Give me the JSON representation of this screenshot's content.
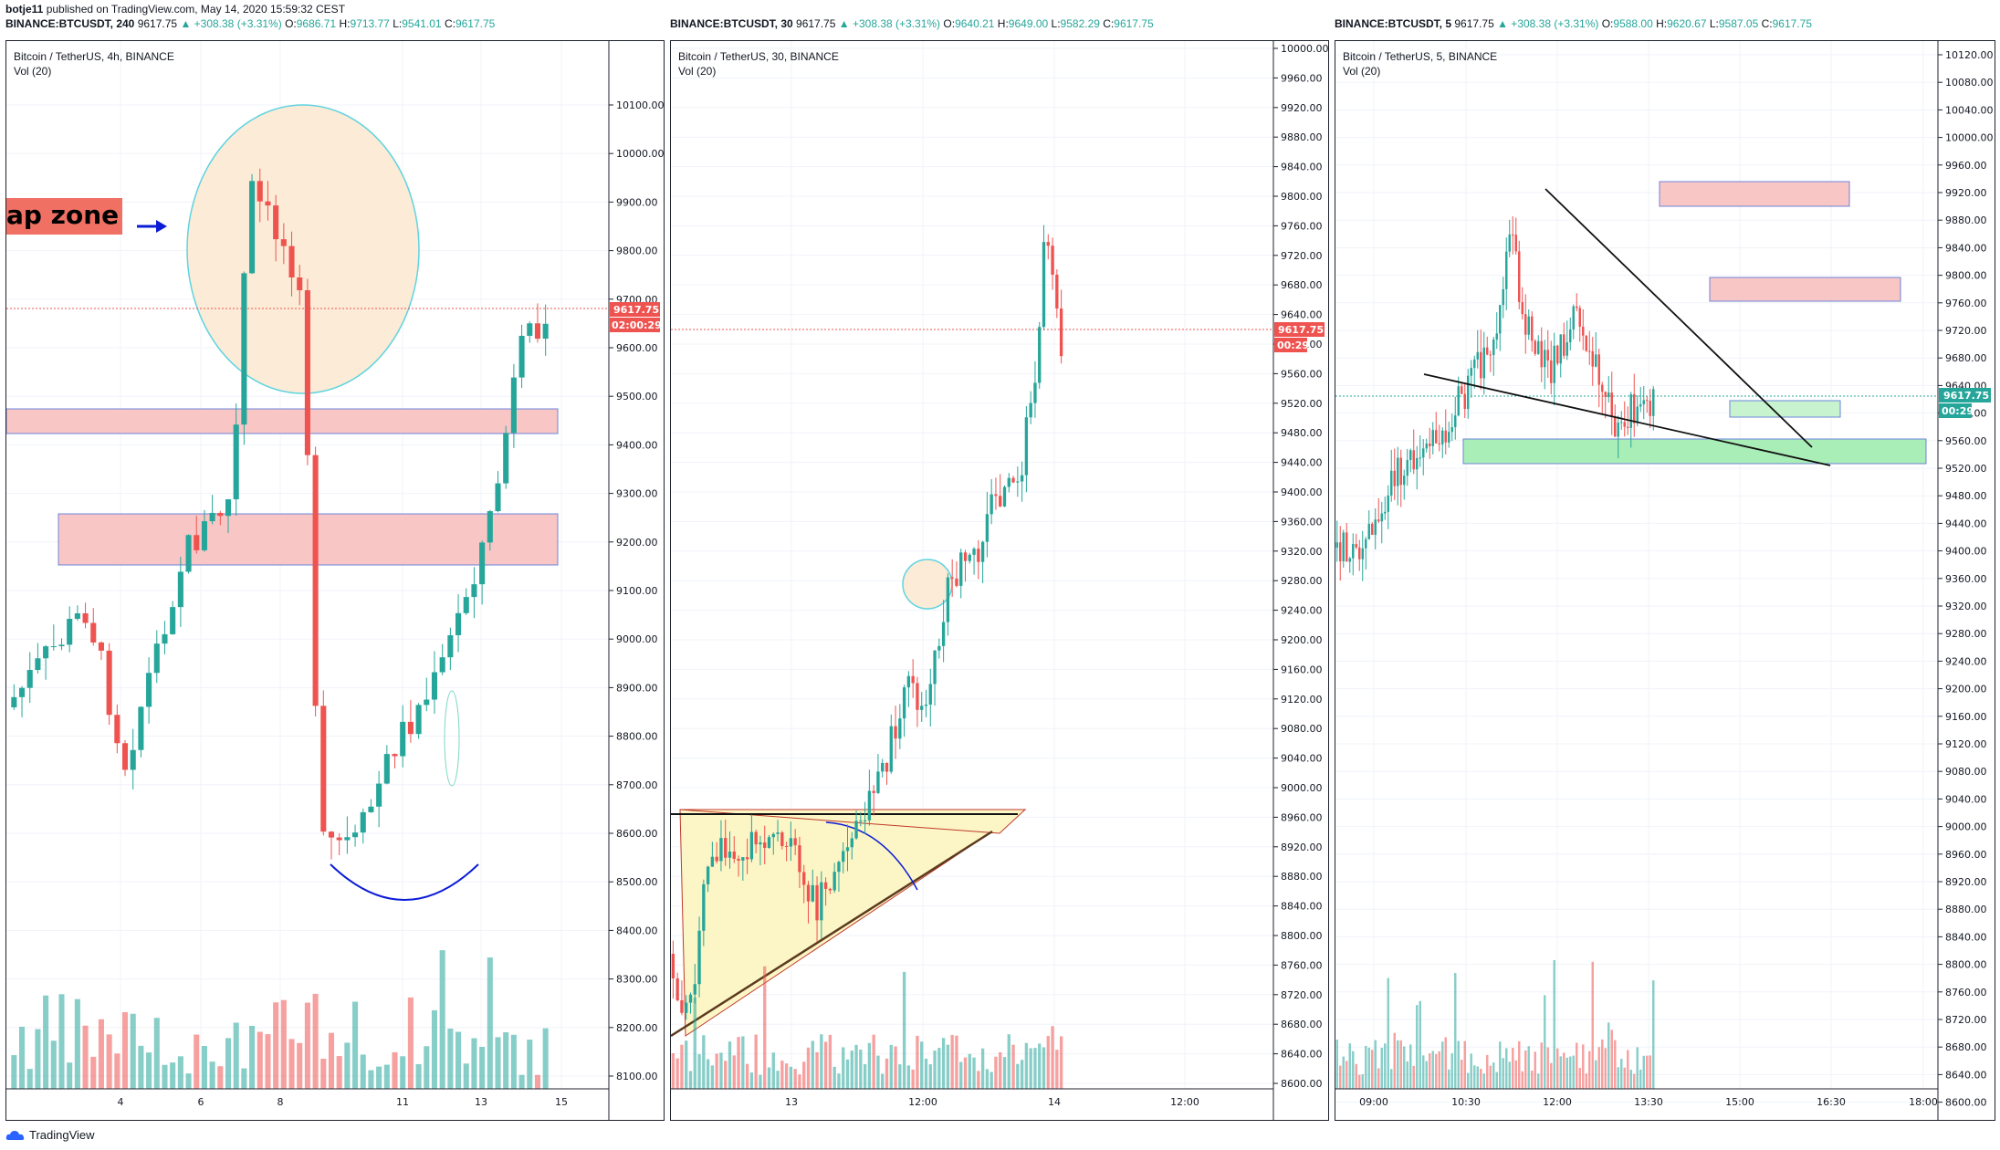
{
  "publisher": {
    "user": "botje11",
    "text": "published on TradingView.com, May 14, 2020 15:59:32 CEST"
  },
  "brand": "TradingView",
  "colors": {
    "up": "#26a69a",
    "down": "#ef5350",
    "zone_red": "#f7b3b3",
    "zone_green": "#a9eeb7"
  },
  "panels": [
    {
      "header": {
        "symbol": "BINANCE:BTCUSDT, 240",
        "last": "9617.75",
        "change": "▲ +308.38 (+3.31%)",
        "o_label": "O:",
        "o": "9686.71",
        "h_label": "H:",
        "h": "9713.77",
        "l_label": "L:",
        "l": "9541.01",
        "c_label": "C:",
        "c": "9617.75"
      },
      "title": "Bitcoin / TetherUS, 4h, BINANCE",
      "vol": "Vol (20)",
      "price_tag": "9617.75",
      "timer_tag": "02:00:29",
      "annotation": "ap zone",
      "y_ticks": [
        "10100.00",
        "10000.00",
        "9900.00",
        "9800.00",
        "9700.00",
        "9600.00",
        "9500.00",
        "9400.00",
        "9300.00",
        "9200.00",
        "9100.00",
        "9000.00",
        "8900.00",
        "8800.00",
        "8700.00",
        "8600.00",
        "8500.00",
        "8400.00",
        "8300.00",
        "8200.00",
        "8100.00"
      ],
      "x_ticks": [
        "4",
        "6",
        "8",
        "11",
        "13",
        "15"
      ]
    },
    {
      "header": {
        "symbol": "BINANCE:BTCUSDT, 30",
        "last": "9617.75",
        "change": "▲ +308.38 (+3.31%)",
        "o_label": "O:",
        "o": "9640.21",
        "h_label": "H:",
        "h": "9649.00",
        "l_label": "L:",
        "l": "9582.29",
        "c_label": "C:",
        "c": "9617.75"
      },
      "title": "Bitcoin / TetherUS, 30, BINANCE",
      "vol": "Vol (20)",
      "price_tag": "9617.75",
      "timer_tag": "00:29",
      "y_ticks": [
        "10000.00",
        "9960.00",
        "9920.00",
        "9880.00",
        "9840.00",
        "9800.00",
        "9760.00",
        "9720.00",
        "9680.00",
        "9640.00",
        "9600.00",
        "9560.00",
        "9520.00",
        "9480.00",
        "9440.00",
        "9400.00",
        "9360.00",
        "9320.00",
        "9280.00",
        "9240.00",
        "9200.00",
        "9160.00",
        "9120.00",
        "9080.00",
        "9040.00",
        "9000.00",
        "8960.00",
        "8920.00",
        "8880.00",
        "8840.00",
        "8800.00",
        "8760.00",
        "8720.00",
        "8680.00",
        "8640.00",
        "8600.00"
      ],
      "x_ticks": [
        "13",
        "12:00",
        "14",
        "12:00"
      ]
    },
    {
      "header": {
        "symbol": "BINANCE:BTCUSDT, 5",
        "last": "9617.75",
        "change": "▲ +308.38 (+3.31%)",
        "o_label": "O:",
        "o": "9588.00",
        "h_label": "H:",
        "h": "9620.67",
        "l_label": "L:",
        "l": "9587.05",
        "c_label": "C:",
        "c": "9617.75"
      },
      "title": "Bitcoin / TetherUS, 5, BINANCE",
      "vol": "Vol (20)",
      "price_tag": "9617.75",
      "timer_tag": "00:29",
      "y_ticks": [
        "10120.00",
        "10080.00",
        "10040.00",
        "10000.00",
        "9960.00",
        "9920.00",
        "9880.00",
        "9840.00",
        "9800.00",
        "9760.00",
        "9720.00",
        "9680.00",
        "9640.00",
        "9600.00",
        "9560.00",
        "9520.00",
        "9480.00",
        "9440.00",
        "9400.00",
        "9360.00",
        "9320.00",
        "9280.00",
        "9240.00",
        "9200.00",
        "9160.00",
        "9120.00",
        "9080.00",
        "9040.00",
        "9000.00",
        "8960.00",
        "8920.00",
        "8880.00",
        "8840.00",
        "8800.00",
        "8760.00",
        "8720.00",
        "8680.00",
        "8640.00",
        "8600.00"
      ],
      "x_ticks": [
        "09:00",
        "10:30",
        "12:00",
        "13:30",
        "15:00",
        "16:30",
        "18:00"
      ]
    }
  ]
}
